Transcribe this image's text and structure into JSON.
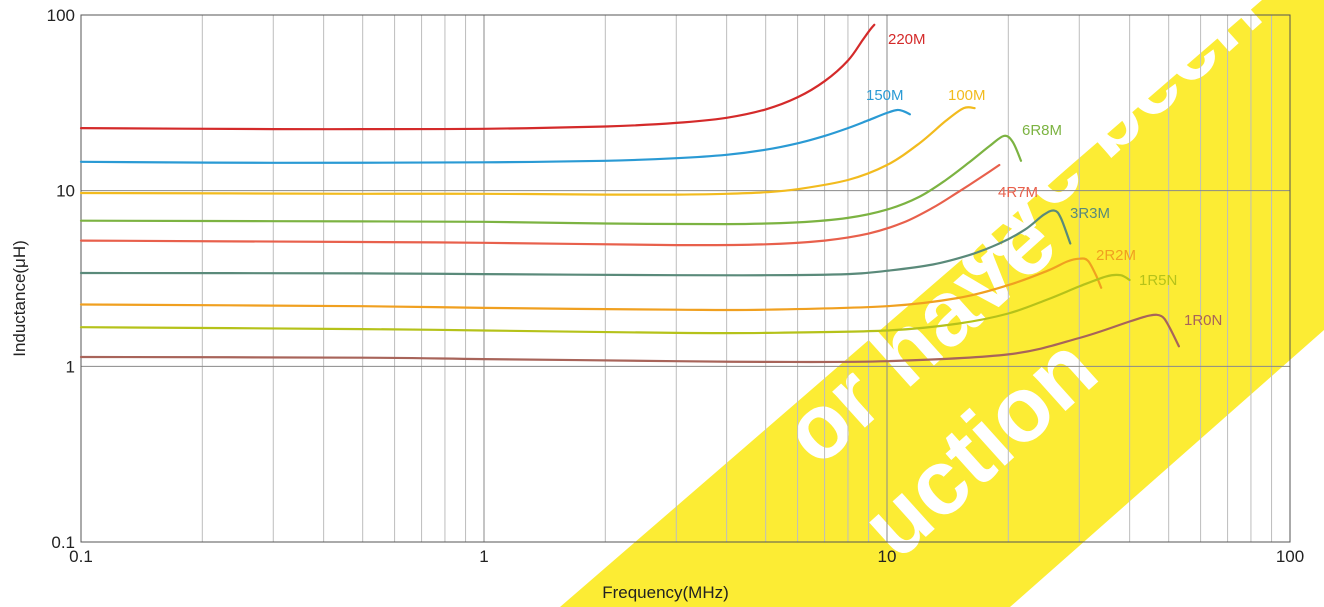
{
  "chart_data": {
    "type": "line",
    "title": "",
    "xlabel": "Frequency(MHz)",
    "ylabel": "Inductance(μH)",
    "x_scale": "log",
    "y_scale": "log",
    "xlim": [
      0.1,
      100
    ],
    "ylim": [
      0.1,
      100
    ],
    "x_tick_labels": [
      "0.1",
      "1",
      "10",
      "100"
    ],
    "y_tick_labels": [
      "0.1",
      "1",
      "10",
      "100"
    ],
    "grid": true,
    "legend": "inline labels",
    "series": [
      {
        "name": "220M",
        "color": "#d42a2a",
        "x": [
          0.1,
          0.3,
          0.5,
          1,
          2,
          3,
          4,
          5,
          6,
          7,
          8,
          8.7,
          9.1,
          9.3
        ],
        "y": [
          22.7,
          22.4,
          22.4,
          22.5,
          23.2,
          24.3,
          26,
          29,
          34,
          42,
          55,
          72,
          83,
          88
        ]
      },
      {
        "name": "150M",
        "color": "#2a9ad4",
        "x": [
          0.1,
          0.3,
          1,
          2,
          3,
          4,
          5,
          6,
          7,
          8,
          9,
          10,
          10.6,
          11,
          11.4
        ],
        "y": [
          14.6,
          14.4,
          14.5,
          14.8,
          15.3,
          16,
          17.1,
          18.6,
          20.5,
          22.7,
          25.2,
          27.7,
          28.8,
          28.3,
          27.2
        ]
      },
      {
        "name": "100M",
        "color": "#f2bb1e",
        "x": [
          0.1,
          0.5,
          1,
          2,
          3,
          4,
          5,
          6,
          8,
          10,
          12,
          14,
          15.5,
          16.5
        ],
        "y": [
          9.7,
          9.6,
          9.6,
          9.5,
          9.5,
          9.6,
          9.8,
          10.2,
          11.5,
          14,
          18.5,
          25,
          29.5,
          29.5
        ]
      },
      {
        "name": "6R8M",
        "color": "#7cb342",
        "x": [
          0.1,
          0.3,
          1,
          2,
          4,
          6,
          8,
          10,
          12,
          14,
          16,
          18,
          19.5,
          20.5,
          21.5
        ],
        "y": [
          6.75,
          6.7,
          6.65,
          6.5,
          6.45,
          6.6,
          7,
          7.8,
          9.2,
          11.5,
          14.5,
          18,
          20.5,
          19,
          14.8
        ]
      },
      {
        "name": "4R7M",
        "color": "#e8604c",
        "x": [
          0.1,
          0.5,
          1,
          3,
          5,
          7,
          9,
          11,
          13,
          15,
          17,
          19
        ],
        "y": [
          5.2,
          5.1,
          5.05,
          4.9,
          4.95,
          5.2,
          5.7,
          6.6,
          8,
          9.8,
          11.8,
          14
        ]
      },
      {
        "name": "3R3M",
        "color": "#5a8a7a",
        "x": [
          0.1,
          0.5,
          1,
          3,
          5,
          8,
          10,
          13,
          16,
          19,
          22,
          24.5,
          26,
          27,
          28.5
        ],
        "y": [
          3.4,
          3.38,
          3.35,
          3.3,
          3.3,
          3.35,
          3.5,
          3.8,
          4.3,
          5,
          6,
          7.3,
          7.7,
          7,
          5
        ]
      },
      {
        "name": "2R2M",
        "color": "#f0a020",
        "x": [
          0.1,
          0.5,
          1,
          3,
          5,
          10,
          15,
          20,
          25,
          28,
          30,
          31.5,
          33,
          34
        ],
        "y": [
          2.25,
          2.2,
          2.15,
          2.1,
          2.1,
          2.2,
          2.45,
          2.9,
          3.5,
          3.95,
          4.1,
          4,
          3.3,
          2.8
        ]
      },
      {
        "name": "1R5N",
        "color": "#b5c21a",
        "x": [
          0.1,
          0.5,
          1,
          3,
          5,
          10,
          15,
          20,
          25,
          30,
          35,
          38,
          40
        ],
        "y": [
          1.67,
          1.63,
          1.6,
          1.55,
          1.55,
          1.6,
          1.75,
          2,
          2.4,
          2.85,
          3.25,
          3.3,
          3.1
        ]
      },
      {
        "name": "1R0N",
        "color": "#a8645a",
        "x": [
          0.1,
          0.5,
          1,
          3,
          5,
          10,
          20,
          30,
          40,
          45,
          48,
          50,
          53
        ],
        "y": [
          1.13,
          1.12,
          1.1,
          1.07,
          1.06,
          1.07,
          1.17,
          1.45,
          1.8,
          1.95,
          1.93,
          1.7,
          1.3
        ]
      }
    ],
    "watermark_lines": [
      "ave been",
      "or have",
      "uction"
    ],
    "watermark_color": "#fcec34"
  }
}
